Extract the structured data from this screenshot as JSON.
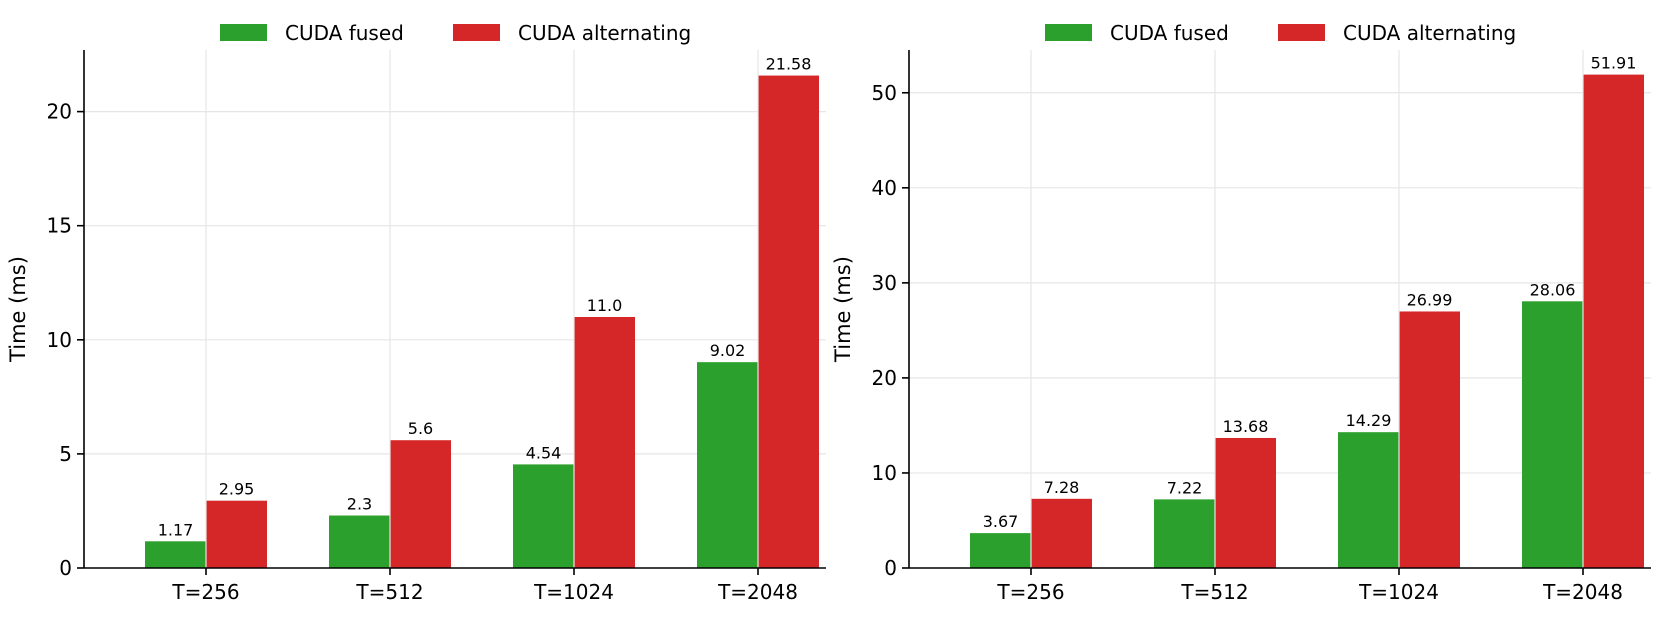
{
  "colors": {
    "fused": "#2ca02c",
    "alternating": "#d62728"
  },
  "chart_data": [
    {
      "type": "bar",
      "title": "",
      "xlabel": "",
      "ylabel": "Time (ms)",
      "categories": [
        "T=256",
        "T=512",
        "T=1024",
        "T=2048"
      ],
      "series": [
        {
          "name": "CUDA fused",
          "values": [
            1.17,
            2.3,
            4.54,
            9.02
          ],
          "labels": [
            "1.17",
            "2.3",
            "4.54",
            "9.02"
          ]
        },
        {
          "name": "CUDA alternating",
          "values": [
            2.95,
            5.6,
            11.0,
            21.58
          ],
          "labels": [
            "2.95",
            "5.6",
            "11.0",
            "21.58"
          ]
        }
      ],
      "ylim": [
        0,
        22.7
      ],
      "yticks": [
        0,
        5,
        10,
        15,
        20
      ],
      "grid": true,
      "legend": "top-center"
    },
    {
      "type": "bar",
      "title": "",
      "xlabel": "",
      "ylabel": "Time (ms)",
      "categories": [
        "T=256",
        "T=512",
        "T=1024",
        "T=2048"
      ],
      "series": [
        {
          "name": "CUDA fused",
          "values": [
            3.67,
            7.22,
            14.29,
            28.06
          ],
          "labels": [
            "3.67",
            "7.22",
            "14.29",
            "28.06"
          ]
        },
        {
          "name": "CUDA alternating",
          "values": [
            7.28,
            13.68,
            26.99,
            51.91
          ],
          "labels": [
            "7.28",
            "13.68",
            "26.99",
            "51.91"
          ]
        }
      ],
      "ylim": [
        0,
        54.5
      ],
      "yticks": [
        0,
        10,
        20,
        30,
        40,
        50
      ],
      "grid": true,
      "legend": "top-center"
    }
  ]
}
